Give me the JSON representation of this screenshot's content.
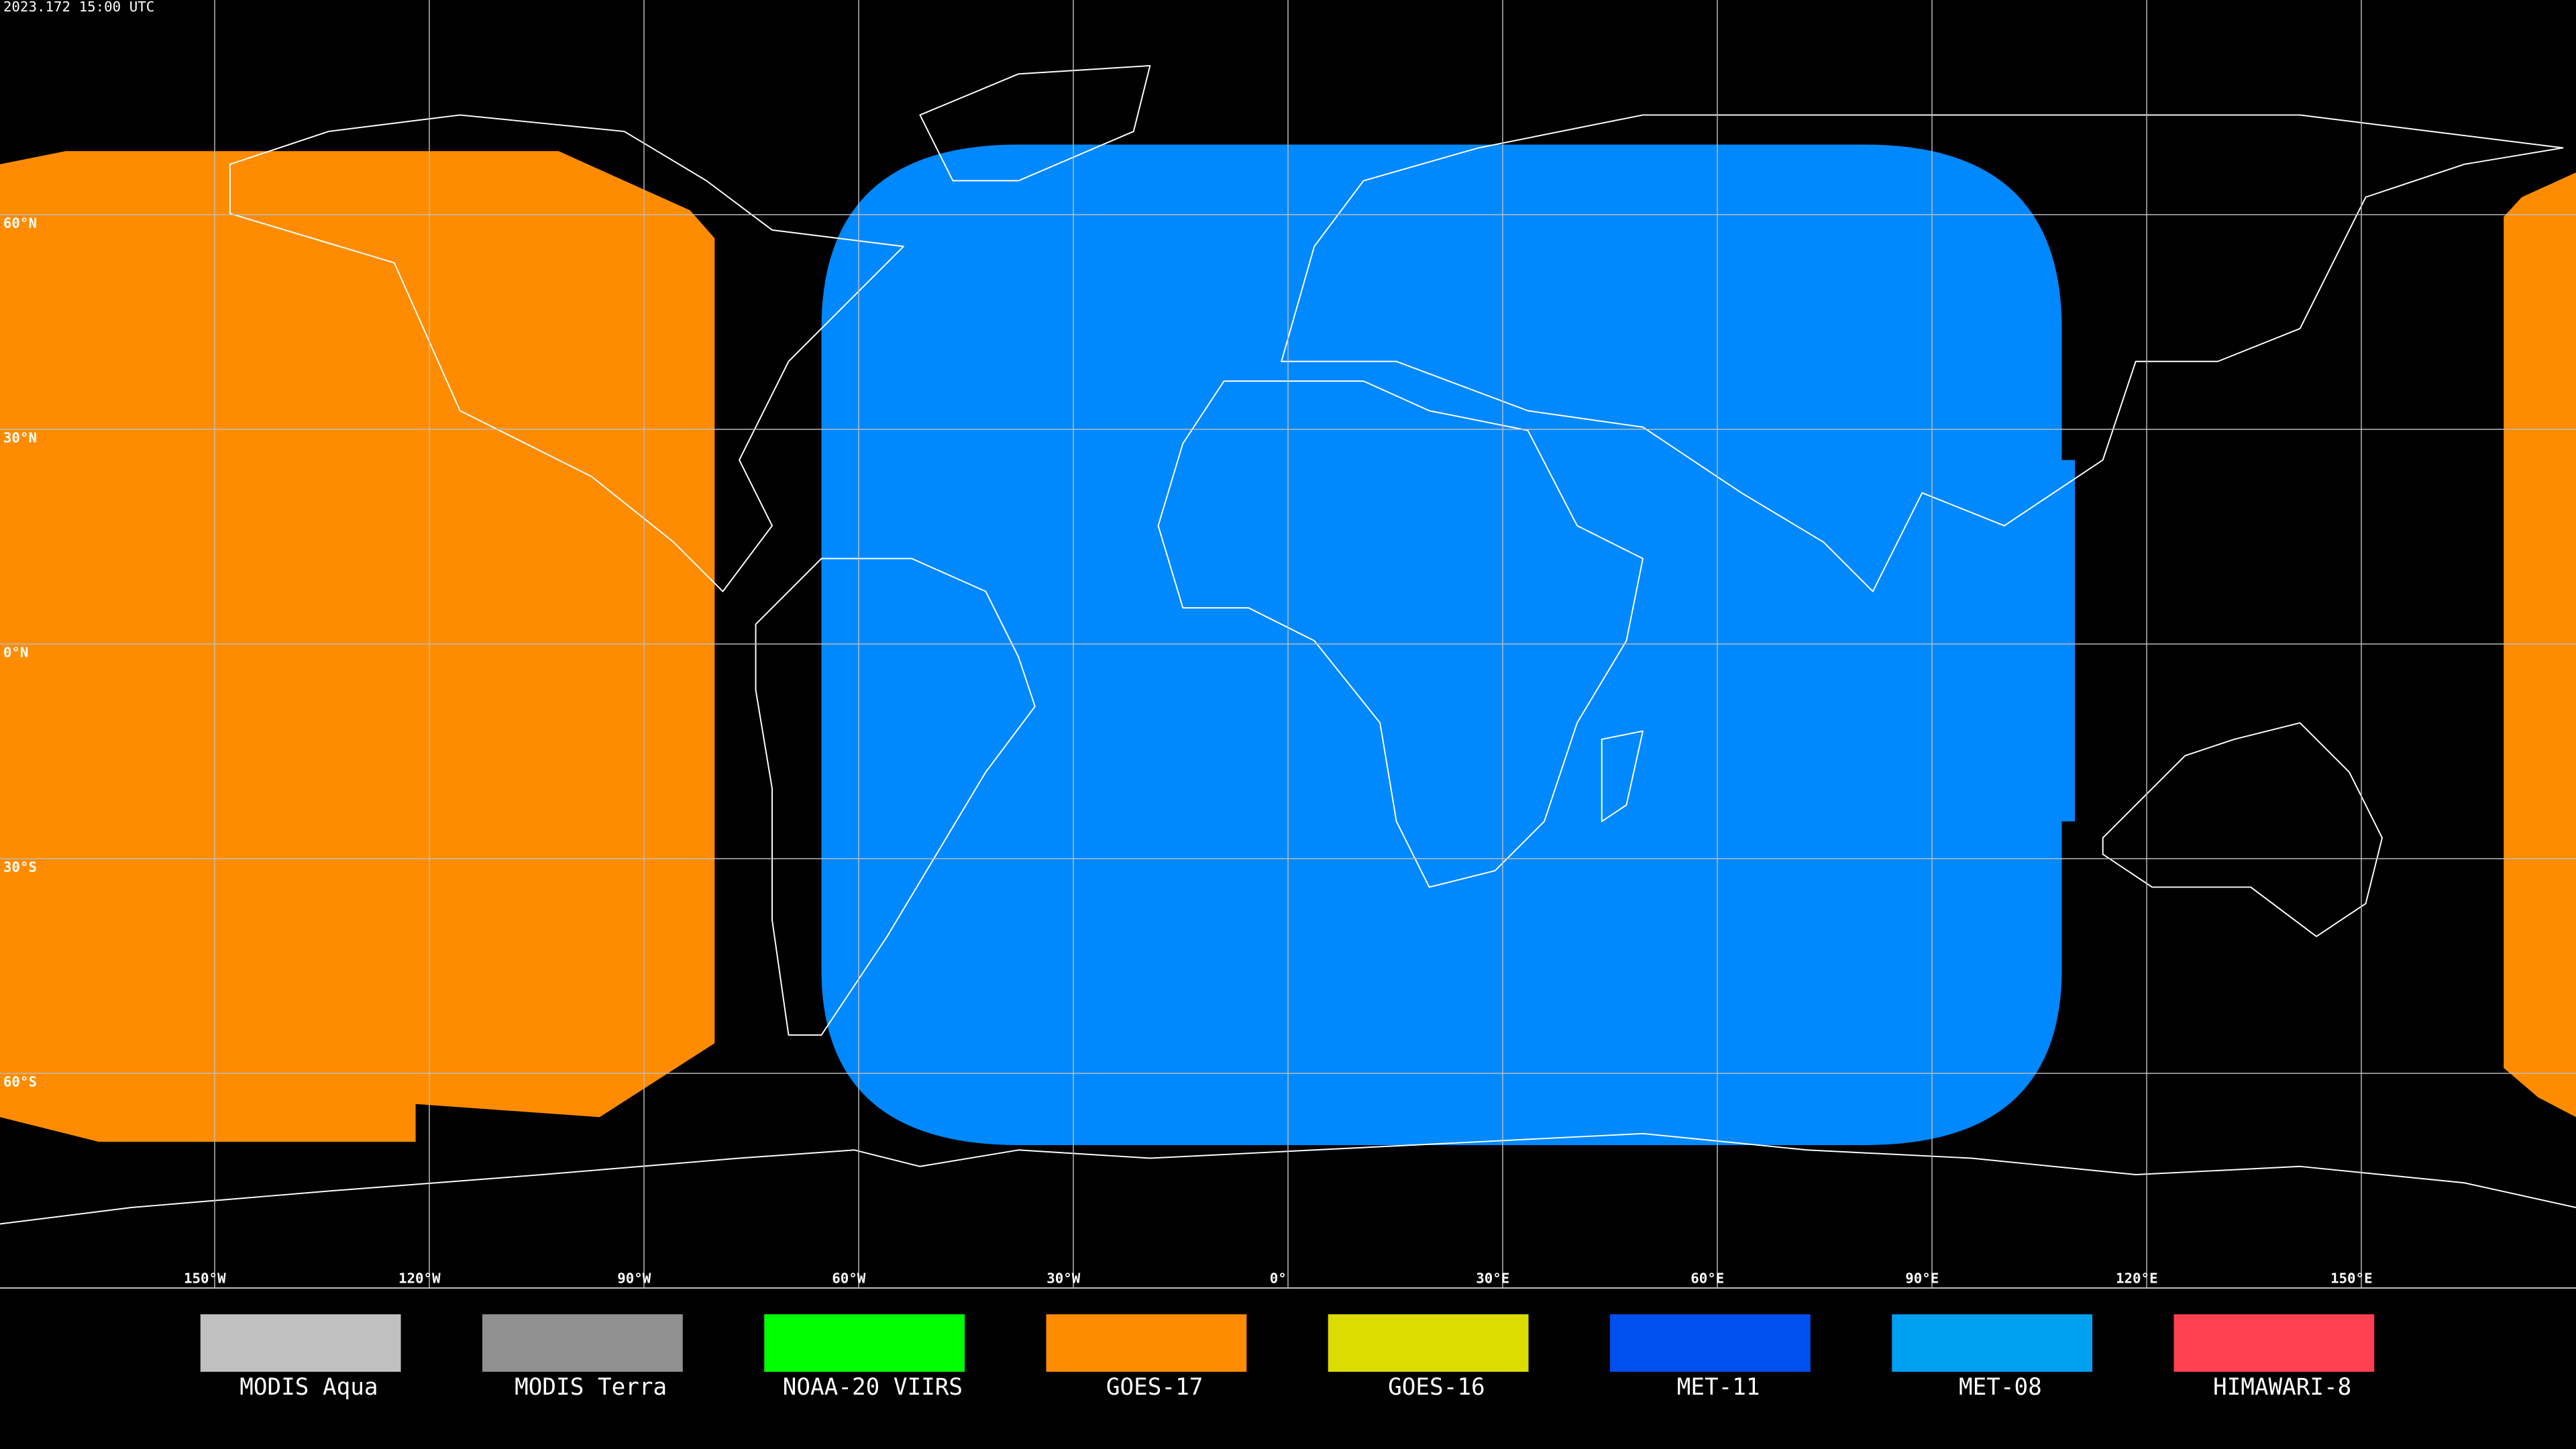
{
  "timestamp": "2023.172 15:00 UTC",
  "lat_labels": [
    "60°N",
    "30°N",
    "0°N",
    "30°S",
    "60°S"
  ],
  "lon_labels": [
    "150°W",
    "120°W",
    "90°W",
    "60°W",
    "30°W",
    "0°",
    "30°E",
    "60°E",
    "90°E",
    "120°E",
    "150°E"
  ],
  "legend": [
    {
      "name": "MODIS Aqua",
      "color": "#c0c0c0"
    },
    {
      "name": "MODIS Terra",
      "color": "#909090"
    },
    {
      "name": "NOAA-20 VIIRS",
      "color": "#00ff00"
    },
    {
      "name": "GOES-17",
      "color": "#ff8c00"
    },
    {
      "name": "GOES-16",
      "color": "#dcdc00"
    },
    {
      "name": "MET-11",
      "color": "#0050f0"
    },
    {
      "name": "MET-08",
      "color": "#00a0f0"
    },
    {
      "name": "HIMAWARI-8",
      "color": "#ff4050"
    }
  ]
}
